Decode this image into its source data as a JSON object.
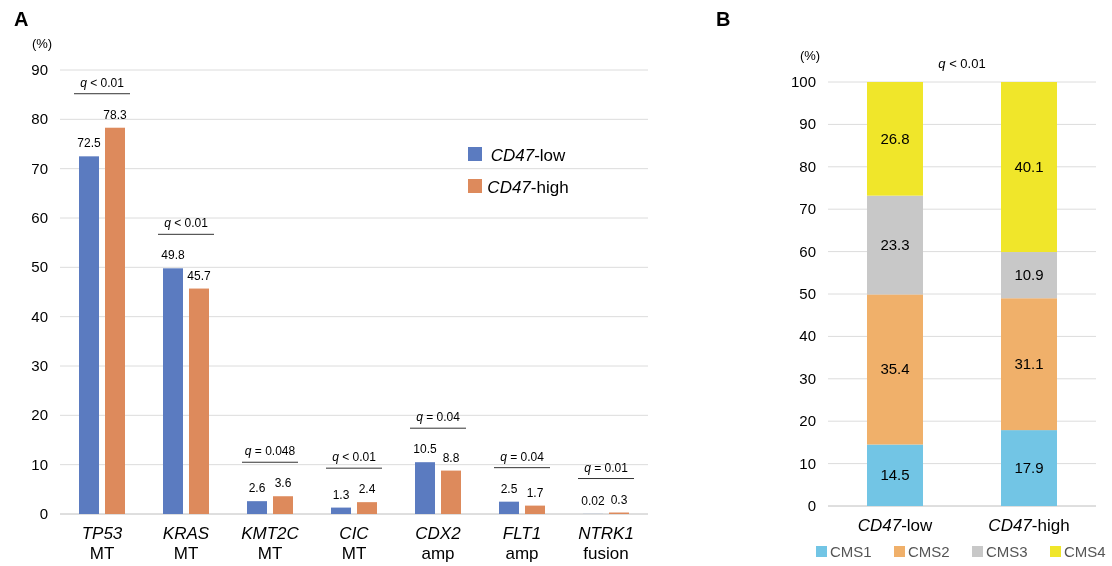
{
  "chart_data": [
    {
      "type": "bar",
      "title": "A",
      "ylabel": "(%)",
      "categories": [
        "TP53 MT",
        "KRAS MT",
        "KMT2C MT",
        "CIC MT",
        "CDX2 amp",
        "FLT1 amp",
        "NTRK1 fusion"
      ],
      "series": [
        {
          "name": "CD47-low",
          "color": "#5b7bc0",
          "values": [
            72.5,
            49.8,
            2.6,
            1.3,
            10.5,
            2.5,
            0.02
          ]
        },
        {
          "name": "CD47-high",
          "color": "#dd8a5c",
          "values": [
            78.3,
            45.7,
            3.6,
            2.4,
            8.8,
            1.7,
            0.3
          ]
        }
      ],
      "ylim": [
        0,
        90
      ],
      "yticks": [
        0,
        10,
        20,
        30,
        40,
        50,
        60,
        70,
        80,
        90
      ],
      "grid": "y",
      "legend": "top right",
      "data_labels": true,
      "annotations": [
        "q < 0.01",
        "q < 0.01",
        "q = 0.048",
        "q < 0.01",
        "q = 0.04",
        "q = 0.04",
        "q = 0.01"
      ]
    },
    {
      "type": "bar",
      "title": "B",
      "ylabel": "(%)",
      "stacked": true,
      "categories": [
        "CD47-low",
        "CD47-high"
      ],
      "series": [
        {
          "name": "CMS1",
          "color": "#72c5e5",
          "values": [
            14.5,
            17.9
          ]
        },
        {
          "name": "CMS2",
          "color": "#f0b06a",
          "values": [
            35.4,
            31.1
          ]
        },
        {
          "name": "CMS3",
          "color": "#c8c8c8",
          "values": [
            23.3,
            10.9
          ]
        },
        {
          "name": "CMS4",
          "color": "#f0e62a",
          "values": [
            26.8,
            40.1
          ]
        }
      ],
      "ylim": [
        0,
        100
      ],
      "yticks": [
        0,
        10,
        20,
        30,
        40,
        50,
        60,
        70,
        80,
        90,
        100
      ],
      "grid": "y",
      "legend": "bottom",
      "data_labels": true,
      "annotations": [
        "q < 0.01"
      ]
    }
  ]
}
